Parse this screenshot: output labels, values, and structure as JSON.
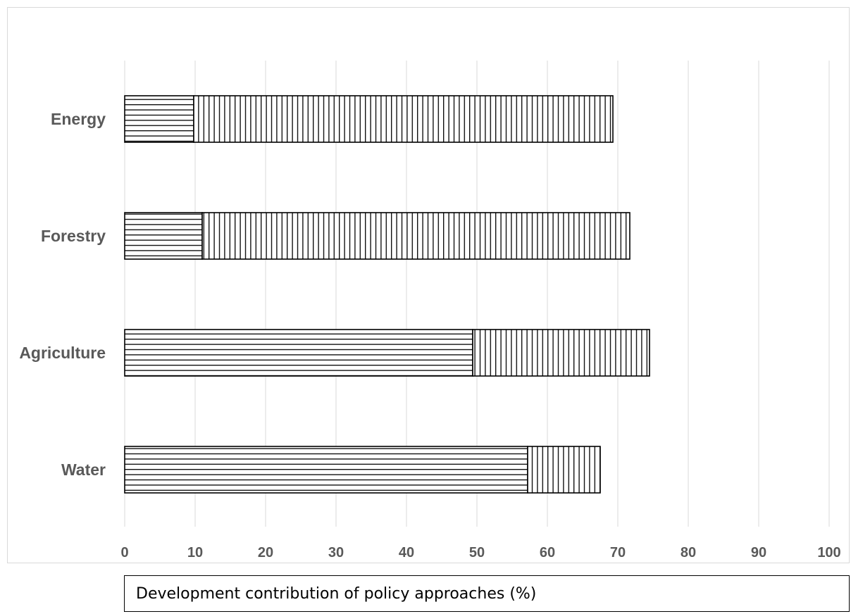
{
  "chart_data": {
    "type": "bar",
    "orientation": "horizontal",
    "stacked": true,
    "categories": [
      "Energy",
      "Forestry",
      "Agriculture",
      "Water"
    ],
    "series": [
      {
        "pattern": "horizontal-lines",
        "values": [
          9.8,
          11.0,
          49.4,
          57.2
        ]
      },
      {
        "pattern": "vertical-lines",
        "values": [
          59.5,
          60.7,
          25.1,
          10.3
        ]
      }
    ],
    "xlim": [
      0,
      100
    ],
    "xticks": [
      0,
      10,
      20,
      30,
      40,
      50,
      60,
      70,
      80,
      90,
      100
    ],
    "xlabel": "Development contribution of policy approaches (%)",
    "grid": "vertical",
    "legend": "none",
    "colors": {
      "grid": "#d9d9d9",
      "bar_stroke": "#000000",
      "label": "#595959",
      "bar_fill": "#ffffff"
    }
  }
}
